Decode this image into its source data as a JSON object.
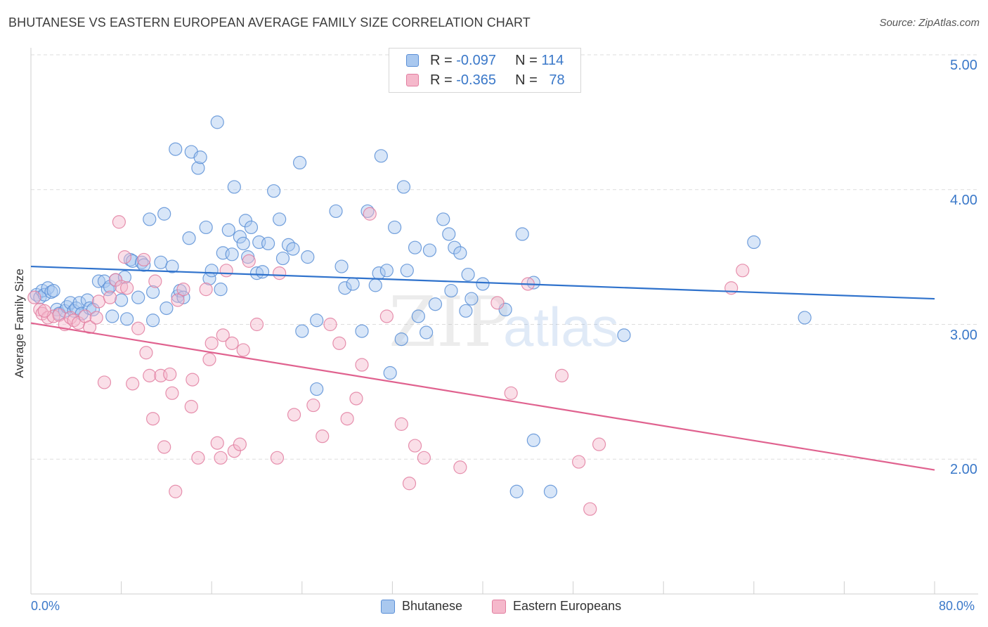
{
  "title": "BHUTANESE VS EASTERN EUROPEAN AVERAGE FAMILY SIZE CORRELATION CHART",
  "source": "Source: ZipAtlas.com",
  "watermark": {
    "zip": "ZIP",
    "atlas": "atlas"
  },
  "legend": {
    "row1": {
      "r_label": "R = ",
      "r_value": "-0.097",
      "n_label": "N = ",
      "n_value": "114"
    },
    "row2": {
      "r_label": "R = ",
      "r_value": "-0.365",
      "n_label": "N = ",
      "n_value": "78"
    }
  },
  "bottom_legend": {
    "s1": "Bhutanese",
    "s2": "Eastern Europeans"
  },
  "axis": {
    "x_min_label": "0.0%",
    "x_max_label": "80.0%",
    "y_ticks": [
      "2.00",
      "3.00",
      "4.00",
      "5.00"
    ],
    "ylabel": "Average Family Size"
  },
  "colors": {
    "blue_fill": "#a9c8ef",
    "blue_stroke": "#5b8fd6",
    "blue_line": "#2f72cc",
    "pink_fill": "#f5b8cb",
    "pink_stroke": "#e27ea0",
    "pink_line": "#e0628f",
    "grid": "#dedede",
    "axis_text": "#3a78c9"
  },
  "chart_data": {
    "type": "scatter",
    "title": "BHUTANESE VS EASTERN EUROPEAN AVERAGE FAMILY SIZE CORRELATION CHART",
    "xlabel": "",
    "ylabel": "Average Family Size",
    "xlim": [
      0,
      80
    ],
    "ylim": [
      1.0,
      5.0
    ],
    "x_unit": "%",
    "grid": true,
    "series": [
      {
        "name": "Bhutanese",
        "color": "#5b8fd6",
        "trend": {
          "x": [
            0,
            80
          ],
          "y": [
            3.43,
            3.19
          ]
        },
        "points": [
          [
            0.5,
            3.22
          ],
          [
            0.8,
            3.2
          ],
          [
            1.0,
            3.25
          ],
          [
            1.2,
            3.22
          ],
          [
            1.5,
            3.27
          ],
          [
            1.8,
            3.24
          ],
          [
            2.0,
            3.25
          ],
          [
            2.3,
            3.11
          ],
          [
            2.5,
            3.08
          ],
          [
            3.0,
            3.1
          ],
          [
            3.2,
            3.13
          ],
          [
            3.5,
            3.16
          ],
          [
            3.8,
            3.1
          ],
          [
            4.0,
            3.12
          ],
          [
            4.3,
            3.16
          ],
          [
            4.5,
            3.08
          ],
          [
            5.0,
            3.18
          ],
          [
            5.2,
            3.12
          ],
          [
            5.5,
            3.11
          ],
          [
            6.0,
            3.32
          ],
          [
            6.5,
            3.32
          ],
          [
            6.8,
            3.26
          ],
          [
            7.0,
            3.28
          ],
          [
            7.2,
            3.06
          ],
          [
            7.5,
            3.33
          ],
          [
            8.0,
            3.18
          ],
          [
            8.3,
            3.35
          ],
          [
            8.5,
            3.04
          ],
          [
            8.8,
            3.48
          ],
          [
            9.0,
            3.47
          ],
          [
            9.5,
            3.2
          ],
          [
            9.8,
            3.46
          ],
          [
            10.0,
            3.44
          ],
          [
            10.5,
            3.78
          ],
          [
            10.8,
            3.03
          ],
          [
            10.8,
            3.24
          ],
          [
            11.5,
            3.46
          ],
          [
            11.8,
            3.82
          ],
          [
            12.0,
            3.12
          ],
          [
            12.5,
            3.43
          ],
          [
            12.8,
            4.3
          ],
          [
            13.0,
            3.21
          ],
          [
            13.2,
            3.25
          ],
          [
            13.5,
            3.2
          ],
          [
            14.0,
            3.64
          ],
          [
            14.2,
            4.28
          ],
          [
            14.8,
            4.16
          ],
          [
            15.0,
            4.24
          ],
          [
            15.5,
            3.72
          ],
          [
            15.8,
            3.34
          ],
          [
            16.0,
            3.4
          ],
          [
            16.5,
            4.5
          ],
          [
            16.8,
            3.26
          ],
          [
            17.0,
            3.53
          ],
          [
            17.5,
            3.7
          ],
          [
            17.8,
            3.52
          ],
          [
            18.0,
            4.02
          ],
          [
            18.5,
            3.65
          ],
          [
            18.8,
            3.6
          ],
          [
            19.0,
            3.77
          ],
          [
            19.2,
            3.5
          ],
          [
            19.5,
            3.72
          ],
          [
            20.0,
            3.38
          ],
          [
            20.2,
            3.61
          ],
          [
            20.5,
            3.39
          ],
          [
            21.0,
            3.6
          ],
          [
            21.5,
            3.99
          ],
          [
            22.0,
            3.78
          ],
          [
            22.3,
            3.49
          ],
          [
            22.8,
            3.59
          ],
          [
            23.2,
            3.56
          ],
          [
            23.8,
            4.2
          ],
          [
            24.0,
            2.95
          ],
          [
            24.5,
            3.5
          ],
          [
            25.3,
            3.03
          ],
          [
            25.3,
            2.52
          ],
          [
            27.0,
            3.84
          ],
          [
            27.5,
            3.43
          ],
          [
            27.8,
            3.27
          ],
          [
            28.5,
            3.3
          ],
          [
            29.3,
            2.95
          ],
          [
            29.8,
            3.84
          ],
          [
            30.5,
            3.29
          ],
          [
            30.8,
            3.38
          ],
          [
            31.0,
            4.25
          ],
          [
            31.5,
            3.4
          ],
          [
            31.8,
            2.64
          ],
          [
            32.2,
            3.72
          ],
          [
            32.8,
            2.89
          ],
          [
            33.0,
            4.02
          ],
          [
            33.3,
            3.4
          ],
          [
            34.0,
            3.57
          ],
          [
            34.3,
            3.06
          ],
          [
            35.0,
            2.94
          ],
          [
            35.3,
            3.55
          ],
          [
            35.8,
            3.15
          ],
          [
            36.5,
            3.78
          ],
          [
            37.0,
            3.67
          ],
          [
            37.2,
            3.25
          ],
          [
            37.5,
            3.57
          ],
          [
            38.0,
            3.53
          ],
          [
            38.5,
            3.1
          ],
          [
            38.7,
            3.37
          ],
          [
            39.0,
            3.19
          ],
          [
            40.0,
            3.3
          ],
          [
            42.0,
            3.11
          ],
          [
            43.5,
            3.67
          ],
          [
            44.5,
            3.31
          ],
          [
            44.5,
            2.14
          ],
          [
            43.0,
            1.76
          ],
          [
            46.0,
            1.76
          ],
          [
            52.5,
            2.92
          ],
          [
            64.0,
            3.61
          ],
          [
            68.5,
            3.05
          ]
        ]
      },
      {
        "name": "Eastern Europeans",
        "color": "#e27ea0",
        "trend": {
          "x": [
            0,
            80
          ],
          "y": [
            3.01,
            1.92
          ]
        },
        "points": [
          [
            0.3,
            3.2
          ],
          [
            0.8,
            3.11
          ],
          [
            1.0,
            3.08
          ],
          [
            1.5,
            3.05
          ],
          [
            2.0,
            3.06
          ],
          [
            2.5,
            3.07
          ],
          [
            3.0,
            3.0
          ],
          [
            3.5,
            3.05
          ],
          [
            3.8,
            3.03
          ],
          [
            4.2,
            3.01
          ],
          [
            4.8,
            3.06
          ],
          [
            5.2,
            2.98
          ],
          [
            5.8,
            3.05
          ],
          [
            6.0,
            3.17
          ],
          [
            6.5,
            2.57
          ],
          [
            7.0,
            3.2
          ],
          [
            7.5,
            3.33
          ],
          [
            7.8,
            3.76
          ],
          [
            8.0,
            3.28
          ],
          [
            8.3,
            3.5
          ],
          [
            8.5,
            3.27
          ],
          [
            9.0,
            2.56
          ],
          [
            9.5,
            2.97
          ],
          [
            10.0,
            3.48
          ],
          [
            10.2,
            2.79
          ],
          [
            10.5,
            2.62
          ],
          [
            10.8,
            2.3
          ],
          [
            11.0,
            3.32
          ],
          [
            11.5,
            2.62
          ],
          [
            11.8,
            2.09
          ],
          [
            12.3,
            2.63
          ],
          [
            12.5,
            2.49
          ],
          [
            12.8,
            1.76
          ],
          [
            13.0,
            3.18
          ],
          [
            13.5,
            3.26
          ],
          [
            14.2,
            2.39
          ],
          [
            14.3,
            2.59
          ],
          [
            14.8,
            2.01
          ],
          [
            15.5,
            3.26
          ],
          [
            15.8,
            2.74
          ],
          [
            16.0,
            2.86
          ],
          [
            16.5,
            2.12
          ],
          [
            16.8,
            2.01
          ],
          [
            17.0,
            2.92
          ],
          [
            17.3,
            3.4
          ],
          [
            17.8,
            2.86
          ],
          [
            18.0,
            2.06
          ],
          [
            18.5,
            2.11
          ],
          [
            18.8,
            2.81
          ],
          [
            19.3,
            3.47
          ],
          [
            20.0,
            3.0
          ],
          [
            21.8,
            2.01
          ],
          [
            22.0,
            3.38
          ],
          [
            23.3,
            2.33
          ],
          [
            25.0,
            2.4
          ],
          [
            25.8,
            2.17
          ],
          [
            26.5,
            3.0
          ],
          [
            27.3,
            2.86
          ],
          [
            28.0,
            2.3
          ],
          [
            28.8,
            2.45
          ],
          [
            29.3,
            2.7
          ],
          [
            30.0,
            3.82
          ],
          [
            31.5,
            3.06
          ],
          [
            32.8,
            2.26
          ],
          [
            33.5,
            1.82
          ],
          [
            34.0,
            2.1
          ],
          [
            34.8,
            2.01
          ],
          [
            38.0,
            1.94
          ],
          [
            41.3,
            3.16
          ],
          [
            42.5,
            2.49
          ],
          [
            44.0,
            3.3
          ],
          [
            47.0,
            2.62
          ],
          [
            48.5,
            1.98
          ],
          [
            49.5,
            1.63
          ],
          [
            50.3,
            2.11
          ],
          [
            62.0,
            3.27
          ],
          [
            63.0,
            3.4
          ],
          [
            1.2,
            3.1
          ]
        ]
      }
    ]
  }
}
